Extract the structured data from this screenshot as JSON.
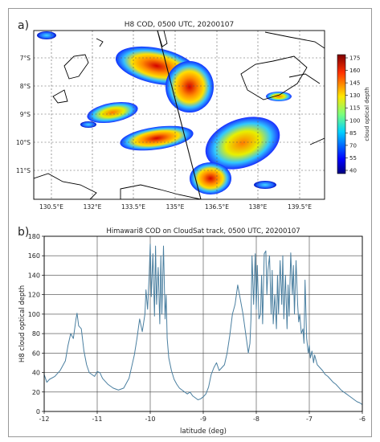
{
  "panel_a": {
    "label": "a)",
    "title": "H8 COD, 0500 UTC, 20200107",
    "lon_ticks": [
      "130.5°E",
      "132°E",
      "133.5°E",
      "135°E",
      "136.5°E",
      "138°E",
      "139.5°E"
    ],
    "lat_ticks": [
      "7°S",
      "8°S",
      "9°S",
      "10°S",
      "11°S"
    ],
    "colorbar": {
      "label": "cloud optical depth",
      "ticks": [
        "175",
        "160",
        "145",
        "130",
        "115",
        "100",
        "85",
        "70",
        "55",
        "40"
      ]
    },
    "colors": {
      "coast": "#000000",
      "grid": "#555555",
      "track": "#111111"
    }
  },
  "panel_b": {
    "label": "b)",
    "title": "Himawari8 COD on CloudSat track, 0500 UTC, 20200107",
    "line_color": "#4a7fa0"
  },
  "chart_data": {
    "type": "line",
    "title": "Himawari8 COD on CloudSat track, 0500 UTC, 20200107",
    "xlabel": "latitude (deg)",
    "ylabel": "H8 cloud optical depth",
    "xlim": [
      -12,
      -6
    ],
    "ylim": [
      0,
      180
    ],
    "xticks": [
      -12,
      -11,
      -10,
      -9,
      -8,
      -7,
      -6
    ],
    "yticks": [
      0,
      20,
      40,
      60,
      80,
      100,
      120,
      140,
      160,
      180
    ],
    "grid": true,
    "x": [
      -12.0,
      -11.95,
      -11.9,
      -11.8,
      -11.7,
      -11.6,
      -11.55,
      -11.5,
      -11.45,
      -11.4,
      -11.38,
      -11.35,
      -11.3,
      -11.25,
      -11.2,
      -11.15,
      -11.1,
      -11.05,
      -11.0,
      -10.95,
      -10.9,
      -10.8,
      -10.7,
      -10.6,
      -10.5,
      -10.4,
      -10.3,
      -10.25,
      -10.2,
      -10.15,
      -10.1,
      -10.08,
      -10.05,
      -10.02,
      -10.0,
      -9.98,
      -9.95,
      -9.92,
      -9.9,
      -9.88,
      -9.85,
      -9.82,
      -9.8,
      -9.78,
      -9.75,
      -9.72,
      -9.7,
      -9.68,
      -9.65,
      -9.6,
      -9.55,
      -9.5,
      -9.45,
      -9.4,
      -9.35,
      -9.3,
      -9.25,
      -9.2,
      -9.15,
      -9.1,
      -9.05,
      -9.0,
      -8.95,
      -8.9,
      -8.85,
      -8.8,
      -8.75,
      -8.7,
      -8.65,
      -8.6,
      -8.55,
      -8.5,
      -8.45,
      -8.4,
      -8.35,
      -8.3,
      -8.25,
      -8.2,
      -8.15,
      -8.12,
      -8.1,
      -8.08,
      -8.05,
      -8.02,
      -8.0,
      -7.98,
      -7.95,
      -7.92,
      -7.9,
      -7.88,
      -7.85,
      -7.82,
      -7.8,
      -7.78,
      -7.75,
      -7.72,
      -7.7,
      -7.68,
      -7.65,
      -7.62,
      -7.6,
      -7.58,
      -7.55,
      -7.52,
      -7.5,
      -7.48,
      -7.45,
      -7.42,
      -7.4,
      -7.38,
      -7.35,
      -7.32,
      -7.3,
      -7.28,
      -7.25,
      -7.22,
      -7.2,
      -7.18,
      -7.15,
      -7.12,
      -7.1,
      -7.08,
      -7.05,
      -7.02,
      -7.0,
      -6.98,
      -6.95,
      -6.92,
      -6.9,
      -6.85,
      -6.8,
      -6.75,
      -6.7,
      -6.65,
      -6.6,
      -6.55,
      -6.5,
      -6.45,
      -6.4,
      -6.35,
      -6.3,
      -6.25,
      -6.2,
      -6.15,
      -6.1,
      -6.05,
      -6.0
    ],
    "values": [
      38,
      30,
      33,
      36,
      42,
      52,
      68,
      80,
      75,
      95,
      101,
      88,
      85,
      62,
      48,
      40,
      38,
      36,
      41,
      40,
      34,
      28,
      24,
      22,
      24,
      34,
      58,
      75,
      95,
      82,
      100,
      125,
      105,
      140,
      172,
      118,
      162,
      98,
      170,
      110,
      148,
      90,
      160,
      100,
      170,
      95,
      120,
      75,
      55,
      42,
      33,
      28,
      24,
      22,
      20,
      18,
      20,
      16,
      14,
      12,
      13,
      15,
      18,
      25,
      38,
      45,
      50,
      42,
      45,
      48,
      60,
      78,
      100,
      110,
      130,
      115,
      100,
      80,
      60,
      70,
      95,
      160,
      110,
      162,
      105,
      150,
      95,
      100,
      140,
      90,
      162,
      165,
      120,
      145,
      160,
      100,
      145,
      90,
      120,
      85,
      140,
      100,
      155,
      110,
      160,
      95,
      140,
      85,
      130,
      98,
      163,
      120,
      150,
      100,
      155,
      110,
      92,
      100,
      80,
      85,
      70,
      135,
      75,
      60,
      68,
      55,
      62,
      50,
      58,
      48,
      45,
      42,
      38,
      36,
      33,
      30,
      28,
      25,
      22,
      20,
      18,
      16,
      14,
      12,
      10,
      9,
      7
    ]
  }
}
